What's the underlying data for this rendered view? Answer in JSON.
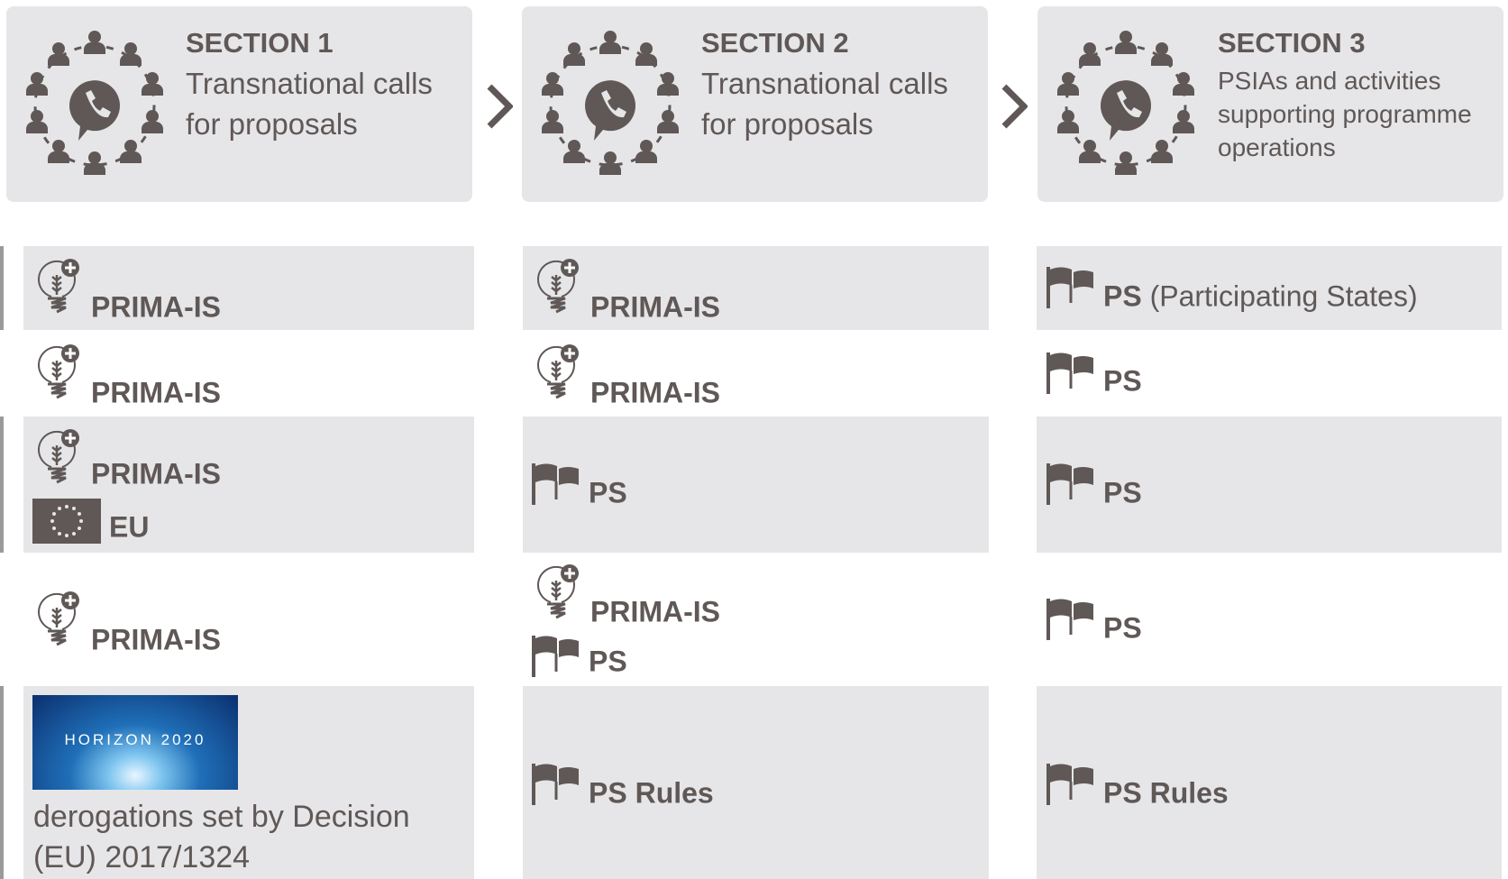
{
  "sections": [
    {
      "title": "SECTION 1",
      "subtitle": "Transnational calls for proposals"
    },
    {
      "title": "SECTION 2",
      "subtitle": "Transnational calls for proposals"
    },
    {
      "title": "SECTION 3",
      "subtitle": "PSIAs and activities supporting programme operations"
    }
  ],
  "rows": [
    [
      {
        "items": [
          {
            "label": "PRIMA-IS"
          }
        ]
      },
      {
        "items": [
          {
            "label": "PRIMA-IS"
          }
        ]
      },
      {
        "items": [
          {
            "label": "PS",
            "detail": "(Participating States)"
          }
        ]
      }
    ],
    [
      {
        "items": [
          {
            "label": "PRIMA-IS"
          }
        ]
      },
      {
        "items": [
          {
            "label": "PRIMA-IS"
          }
        ]
      },
      {
        "items": [
          {
            "label": "PS"
          }
        ]
      }
    ],
    [
      {
        "items": [
          {
            "label": "PRIMA-IS"
          },
          {
            "label": "EU"
          }
        ]
      },
      {
        "items": [
          {
            "label": "PS"
          }
        ]
      },
      {
        "items": [
          {
            "label": "PS"
          }
        ]
      }
    ],
    [
      {
        "items": [
          {
            "label": "PRIMA-IS"
          }
        ]
      },
      {
        "items": [
          {
            "label": "PRIMA-IS"
          },
          {
            "label": "PS"
          }
        ]
      },
      {
        "items": [
          {
            "label": "PS"
          }
        ]
      }
    ],
    [
      {
        "logo_text": "HORIZON 2020",
        "text": "derogations set by Decision (EU) 2017/1324"
      },
      {
        "items": [
          {
            "label": "PS Rules"
          }
        ]
      },
      {
        "items": [
          {
            "label": "PS Rules"
          }
        ]
      }
    ]
  ]
}
